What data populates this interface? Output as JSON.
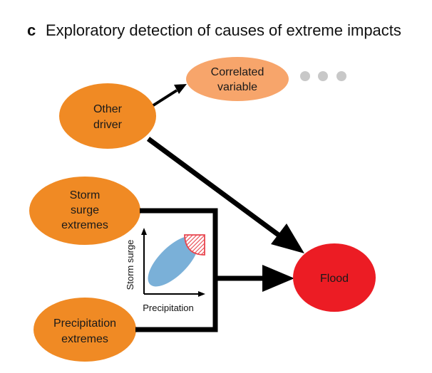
{
  "panel": {
    "letter": "c",
    "title": "Exploratory detection of causes of extreme impacts"
  },
  "nodes": {
    "other_driver": {
      "lines": [
        "Other",
        "driver"
      ]
    },
    "correlated_variable": {
      "lines": [
        "Correlated",
        "variable"
      ]
    },
    "storm_surge_extremes": {
      "lines": [
        "Storm",
        "surge",
        "extremes"
      ]
    },
    "precipitation_extremes": {
      "lines": [
        "Precipitation",
        "extremes"
      ]
    },
    "flood": {
      "lines": [
        "Flood"
      ]
    }
  },
  "inset": {
    "x_label": "Precipitation",
    "y_label": "Storm surge"
  },
  "colors": {
    "orange": "#f08a24",
    "light_orange": "#f7a56b",
    "flood_red": "#ec1c24",
    "gray_dots": "#c8c8c8",
    "blue_cloud": "#7ab0d8",
    "extreme_hatch": "#e8454e",
    "line": "#000000"
  },
  "decor": {
    "continuation": "ellipsis-dots"
  }
}
